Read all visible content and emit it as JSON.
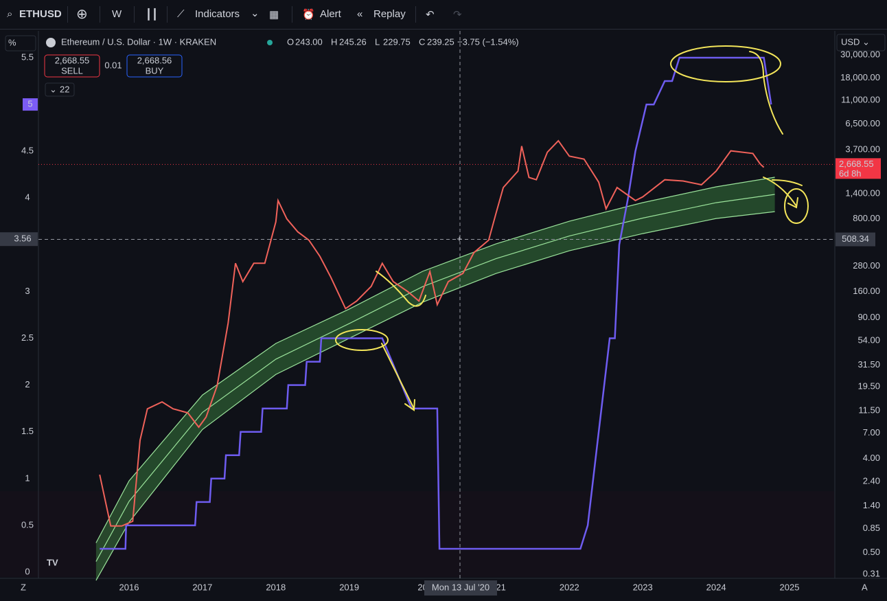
{
  "toolbar": {
    "symbol": "ETHUSD",
    "interval": "W",
    "indicators": "Indicators",
    "alert": "Alert",
    "replay": "Replay"
  },
  "legend": {
    "title": "Ethereum / U.S. Dollar · 1W · KRAKEN",
    "ohlc": [
      {
        "label": "O",
        "value": "243.00"
      },
      {
        "label": "H",
        "value": "245.26"
      },
      {
        "label": "L",
        "value": "229.75"
      },
      {
        "label": "C",
        "value": "239.25"
      }
    ],
    "change": "−3.75 (−1.54%)",
    "sell_price": "2,668.55",
    "sell": "SELL",
    "spread": "0.01",
    "buy_price": "2,668.56",
    "buy": "BUY",
    "indicator_count": "22"
  },
  "chart": {
    "left_unit": "%",
    "right_unit": "USD",
    "left_ticks": [
      0,
      0.5,
      1,
      1.5,
      2,
      2.5,
      3,
      4,
      4.5,
      5.5
    ],
    "left_marker": 5,
    "right_ticks": [
      {
        "value": 30000,
        "label": "30,000.00"
      },
      {
        "value": 18000,
        "label": "18,000.00"
      },
      {
        "value": 11000,
        "label": "11,000.00"
      },
      {
        "value": 6500,
        "label": "6,500.00"
      },
      {
        "value": 3700,
        "label": "3,700.00"
      },
      {
        "value": 1400,
        "label": "1,400.00"
      },
      {
        "value": 800,
        "label": "800.00"
      },
      {
        "value": 280,
        "label": "280.00"
      },
      {
        "value": 160,
        "label": "160.00"
      },
      {
        "value": 90,
        "label": "90.00"
      },
      {
        "value": 54,
        "label": "54.00"
      },
      {
        "value": 31.5,
        "label": "31.50"
      },
      {
        "value": 19.5,
        "label": "19.50"
      },
      {
        "value": 11.5,
        "label": "11.50"
      },
      {
        "value": 7,
        "label": "7.00"
      },
      {
        "value": 4,
        "label": "4.00"
      },
      {
        "value": 2.4,
        "label": "2.40"
      },
      {
        "value": 1.4,
        "label": "1.40"
      },
      {
        "value": 0.85,
        "label": "0.85"
      },
      {
        "value": 0.5,
        "label": "0.50"
      },
      {
        "value": 0.31,
        "label": "0.31"
      }
    ],
    "x_labels": [
      2016,
      2017,
      2018,
      2019,
      {
        "value": 2020,
        "label": "20"
      },
      2021,
      2022,
      2023,
      2024,
      2025
    ],
    "current_price": {
      "value": 2668.55,
      "label": "2,668.55",
      "countdown": "6d 8h"
    },
    "crosshair": {
      "price": {
        "value": 508.34,
        "label": "508.34"
      },
      "percent": 3.56,
      "time": "Mon 13 Jul '20"
    },
    "price": {
      "color": "#f0625a",
      "x": [
        2015.6,
        2015.75,
        2015.9,
        2016.05,
        2016.15,
        2016.25,
        2016.45,
        2016.6,
        2016.8,
        2016.95,
        2017.05,
        2017.2,
        2017.35,
        2017.45,
        2017.55,
        2017.7,
        2017.85,
        2018.0,
        2018.03,
        2018.15,
        2018.3,
        2018.45,
        2018.6,
        2018.75,
        2018.95,
        2019.1,
        2019.3,
        2019.45,
        2019.6,
        2019.8,
        2019.95,
        2020.1,
        2020.2,
        2020.35,
        2020.55,
        2020.7,
        2020.9,
        2021.0,
        2021.1,
        2021.3,
        2021.35,
        2021.45,
        2021.55,
        2021.7,
        2021.85,
        2022.0,
        2022.2,
        2022.4,
        2022.5,
        2022.65,
        2022.9,
        2023.0,
        2023.3,
        2023.55,
        2023.8,
        2024.0,
        2024.2,
        2024.5,
        2024.6,
        2024.65
      ],
      "values": [
        2.8,
        0.9,
        0.9,
        1.0,
        6,
        12,
        14,
        12,
        11,
        8,
        10,
        20,
        80,
        300,
        200,
        300,
        300,
        750,
        1200,
        800,
        600,
        500,
        350,
        220,
        110,
        130,
        180,
        300,
        200,
        160,
        130,
        250,
        120,
        200,
        240,
        380,
        500,
        900,
        1600,
        2300,
        4000,
        2000,
        1900,
        3500,
        4500,
        3200,
        3000,
        1800,
        1000,
        1600,
        1200,
        1300,
        1900,
        1850,
        1700,
        2300,
        3600,
        3400,
        2700,
        2500
      ]
    },
    "band": {
      "color": "#4caf50",
      "x": [
        2015.55,
        2016,
        2017,
        2018,
        2019,
        2020,
        2021,
        2022,
        2023,
        2024,
        2024.8
      ],
      "upper": [
        0.62,
        2.44,
        16.3,
        51,
        109,
        251,
        460,
        760,
        1146,
        1625,
        2010
      ],
      "mid": [
        0.41,
        1.55,
        11.1,
        36,
        79,
        179,
        332,
        548,
        814,
        1145,
        1375
      ],
      "lower": [
        0.27,
        0.98,
        7.6,
        25.7,
        57,
        127,
        239,
        395,
        578,
        807,
        940
      ]
    },
    "indicator": {
      "color": "#6e5cf0",
      "x": [
        2015.6,
        2015.95,
        2015.96,
        2016.9,
        2016.92,
        2017.1,
        2017.12,
        2017.3,
        2017.32,
        2017.5,
        2017.52,
        2017.8,
        2017.82,
        2018.15,
        2018.17,
        2018.4,
        2018.42,
        2018.6,
        2018.62,
        2019.45,
        2019.85,
        2020.2,
        2020.23,
        2022.15,
        2022.25,
        2022.4,
        2022.55,
        2022.62,
        2022.68,
        2022.8,
        2022.9,
        2023.05,
        2023.15,
        2023.3,
        2023.4,
        2023.5,
        2024.65,
        2024.75
      ],
      "values": [
        0.25,
        0.25,
        0.5,
        0.5,
        0.75,
        0.75,
        1.0,
        1.0,
        1.25,
        1.25,
        1.5,
        1.5,
        1.75,
        1.75,
        2.0,
        2.0,
        2.25,
        2.25,
        2.5,
        2.5,
        1.75,
        1.75,
        0.25,
        0.25,
        0.5,
        1.5,
        2.5,
        2.5,
        3.5,
        4.0,
        4.5,
        5.0,
        5.0,
        5.25,
        5.25,
        5.5,
        5.5,
        5.0
      ]
    }
  }
}
